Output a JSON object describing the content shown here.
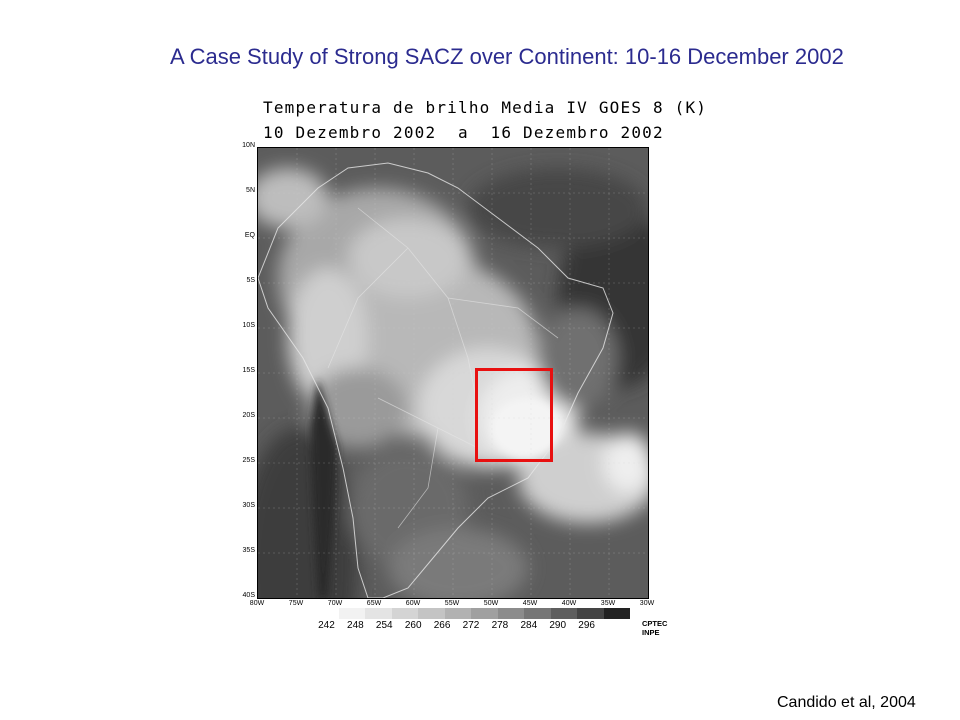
{
  "slide": {
    "title": "A Case Study of Strong SACZ over Continent: 10-16 December 2002",
    "credit": "Candido et al, 2004"
  },
  "map": {
    "title_line1": "Temperatura de brilho Media IV GOES 8 (K)",
    "title_line2": "10 Dezembro 2002  a  16 Dezembro 2002",
    "lat_labels": [
      "10N",
      "5N",
      "EQ",
      "5S",
      "10S",
      "15S",
      "20S",
      "25S",
      "30S",
      "35S",
      "40S"
    ],
    "lon_labels": [
      "80W",
      "75W",
      "70W",
      "65W",
      "60W",
      "55W",
      "50W",
      "45W",
      "40W",
      "35W",
      "30W"
    ],
    "extent": {
      "lon_min": -80,
      "lon_max": -30,
      "lat_min": -40,
      "lat_max": 10
    },
    "highlight_region": {
      "lon_min": -52,
      "lon_max": -42,
      "lat_min": -25,
      "lat_max": -14.5,
      "color": "#e81010"
    },
    "colorbar": {
      "labels": [
        "242",
        "248",
        "254",
        "260",
        "266",
        "272",
        "278",
        "284",
        "290",
        "296"
      ],
      "colors": [
        "#ffffff",
        "#f2f2f2",
        "#e4e4e4",
        "#d4d4d4",
        "#c4c4c4",
        "#b2b2b2",
        "#a0a0a0",
        "#8c8c8c",
        "#767676",
        "#5e5e5e",
        "#444444",
        "#222222"
      ]
    },
    "logo": [
      "CPTEC",
      "INPE"
    ]
  }
}
